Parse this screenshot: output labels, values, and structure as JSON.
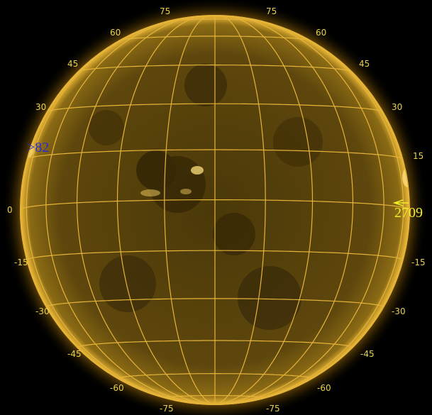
{
  "image": {
    "subject": "solar disk with heliographic grid",
    "colors": {
      "background": "#000000",
      "disk_dark": "#3a2a06",
      "disk_mid": "#6e5410",
      "limb_glow": "#f2b51c",
      "grid": "#e6b43a",
      "grid_label": "#e8d24a"
    }
  },
  "grid_labels": {
    "top": [
      "75",
      "75"
    ],
    "upper": [
      "60",
      "60",
      "45",
      "45",
      "30",
      "30",
      "15",
      "0"
    ],
    "lower": [
      "-15",
      "-15",
      "-30",
      "-30",
      "-45",
      "-45",
      "-60",
      "-60"
    ],
    "bottom": [
      "-75",
      "-75"
    ]
  },
  "regions": [
    {
      "label": ">82",
      "color": "#2a2ad8"
    },
    {
      "label": "2709",
      "color": "#f0ee2a"
    }
  ]
}
